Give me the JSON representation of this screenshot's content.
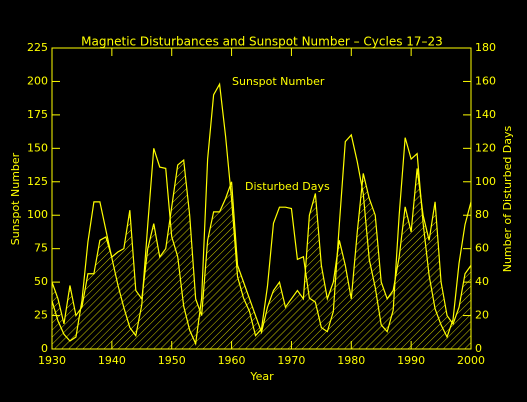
{
  "chart_data": {
    "type": "line",
    "title": "Magnetic Disturbances and Sunspot Number – Cycles 17–23",
    "x_label": "Year",
    "y_label": "Sunspot Number",
    "y2_label": "Number of Disturbed Days",
    "x": [
      1930,
      1931,
      1932,
      1933,
      1934,
      1935,
      1936,
      1937,
      1938,
      1939,
      1940,
      1941,
      1942,
      1943,
      1944,
      1945,
      1946,
      1947,
      1948,
      1949,
      1950,
      1951,
      1952,
      1953,
      1954,
      1955,
      1956,
      1957,
      1958,
      1959,
      1960,
      1961,
      1962,
      1963,
      1964,
      1965,
      1966,
      1967,
      1968,
      1969,
      1970,
      1971,
      1972,
      1973,
      1974,
      1975,
      1976,
      1977,
      1978,
      1979,
      1980,
      1981,
      1982,
      1983,
      1984,
      1985,
      1986,
      1987,
      1988,
      1989,
      1990,
      1991,
      1992,
      1993,
      1994,
      1995,
      1996,
      1997,
      1998,
      1999,
      2000
    ],
    "series": [
      {
        "name": "Sunspot Number",
        "color": "#ffff00",
        "axis": "y",
        "values": [
          36,
          21,
          11,
          6,
          9,
          36,
          80,
          110,
          110,
          89,
          68,
          48,
          31,
          16,
          10,
          33,
          93,
          150,
          136,
          135,
          84,
          69,
          32,
          14,
          4,
          38,
          142,
          190,
          198,
          159,
          112,
          54,
          38,
          28,
          10,
          15,
          47,
          94,
          106,
          106,
          105,
          67,
          69,
          38,
          35,
          16,
          13,
          28,
          93,
          155,
          160,
          140,
          116,
          67,
          46,
          18,
          13,
          29,
          100,
          158,
          142,
          146,
          94,
          55,
          30,
          18,
          9,
          22,
          64,
          93,
          110
        ]
      },
      {
        "name": "Disturbed Days",
        "color": "#ffff00",
        "axis": "y2",
        "hatched": true,
        "values": [
          40,
          30,
          15,
          38,
          20,
          25,
          45,
          45,
          65,
          67,
          55,
          58,
          60,
          83,
          35,
          30,
          60,
          75,
          55,
          60,
          85,
          110,
          113,
          80,
          30,
          20,
          65,
          82,
          82,
          90,
          100,
          50,
          40,
          30,
          20,
          10,
          25,
          35,
          40,
          25,
          30,
          35,
          30,
          80,
          93,
          50,
          30,
          40,
          65,
          50,
          30,
          70,
          105,
          90,
          80,
          40,
          30,
          35,
          55,
          85,
          70,
          108,
          80,
          65,
          88,
          40,
          20,
          15,
          25,
          45,
          50
        ]
      }
    ],
    "xlim": [
      1930,
      2000
    ],
    "xticks": [
      1930,
      1940,
      1950,
      1960,
      1970,
      1980,
      1990,
      2000
    ],
    "ylim": [
      0,
      225
    ],
    "yticks": [
      0,
      25,
      50,
      75,
      100,
      125,
      150,
      175,
      200,
      225
    ],
    "y2lim": [
      0,
      180
    ],
    "y2ticks": [
      0,
      20,
      40,
      60,
      80,
      100,
      120,
      140,
      160,
      180
    ]
  }
}
